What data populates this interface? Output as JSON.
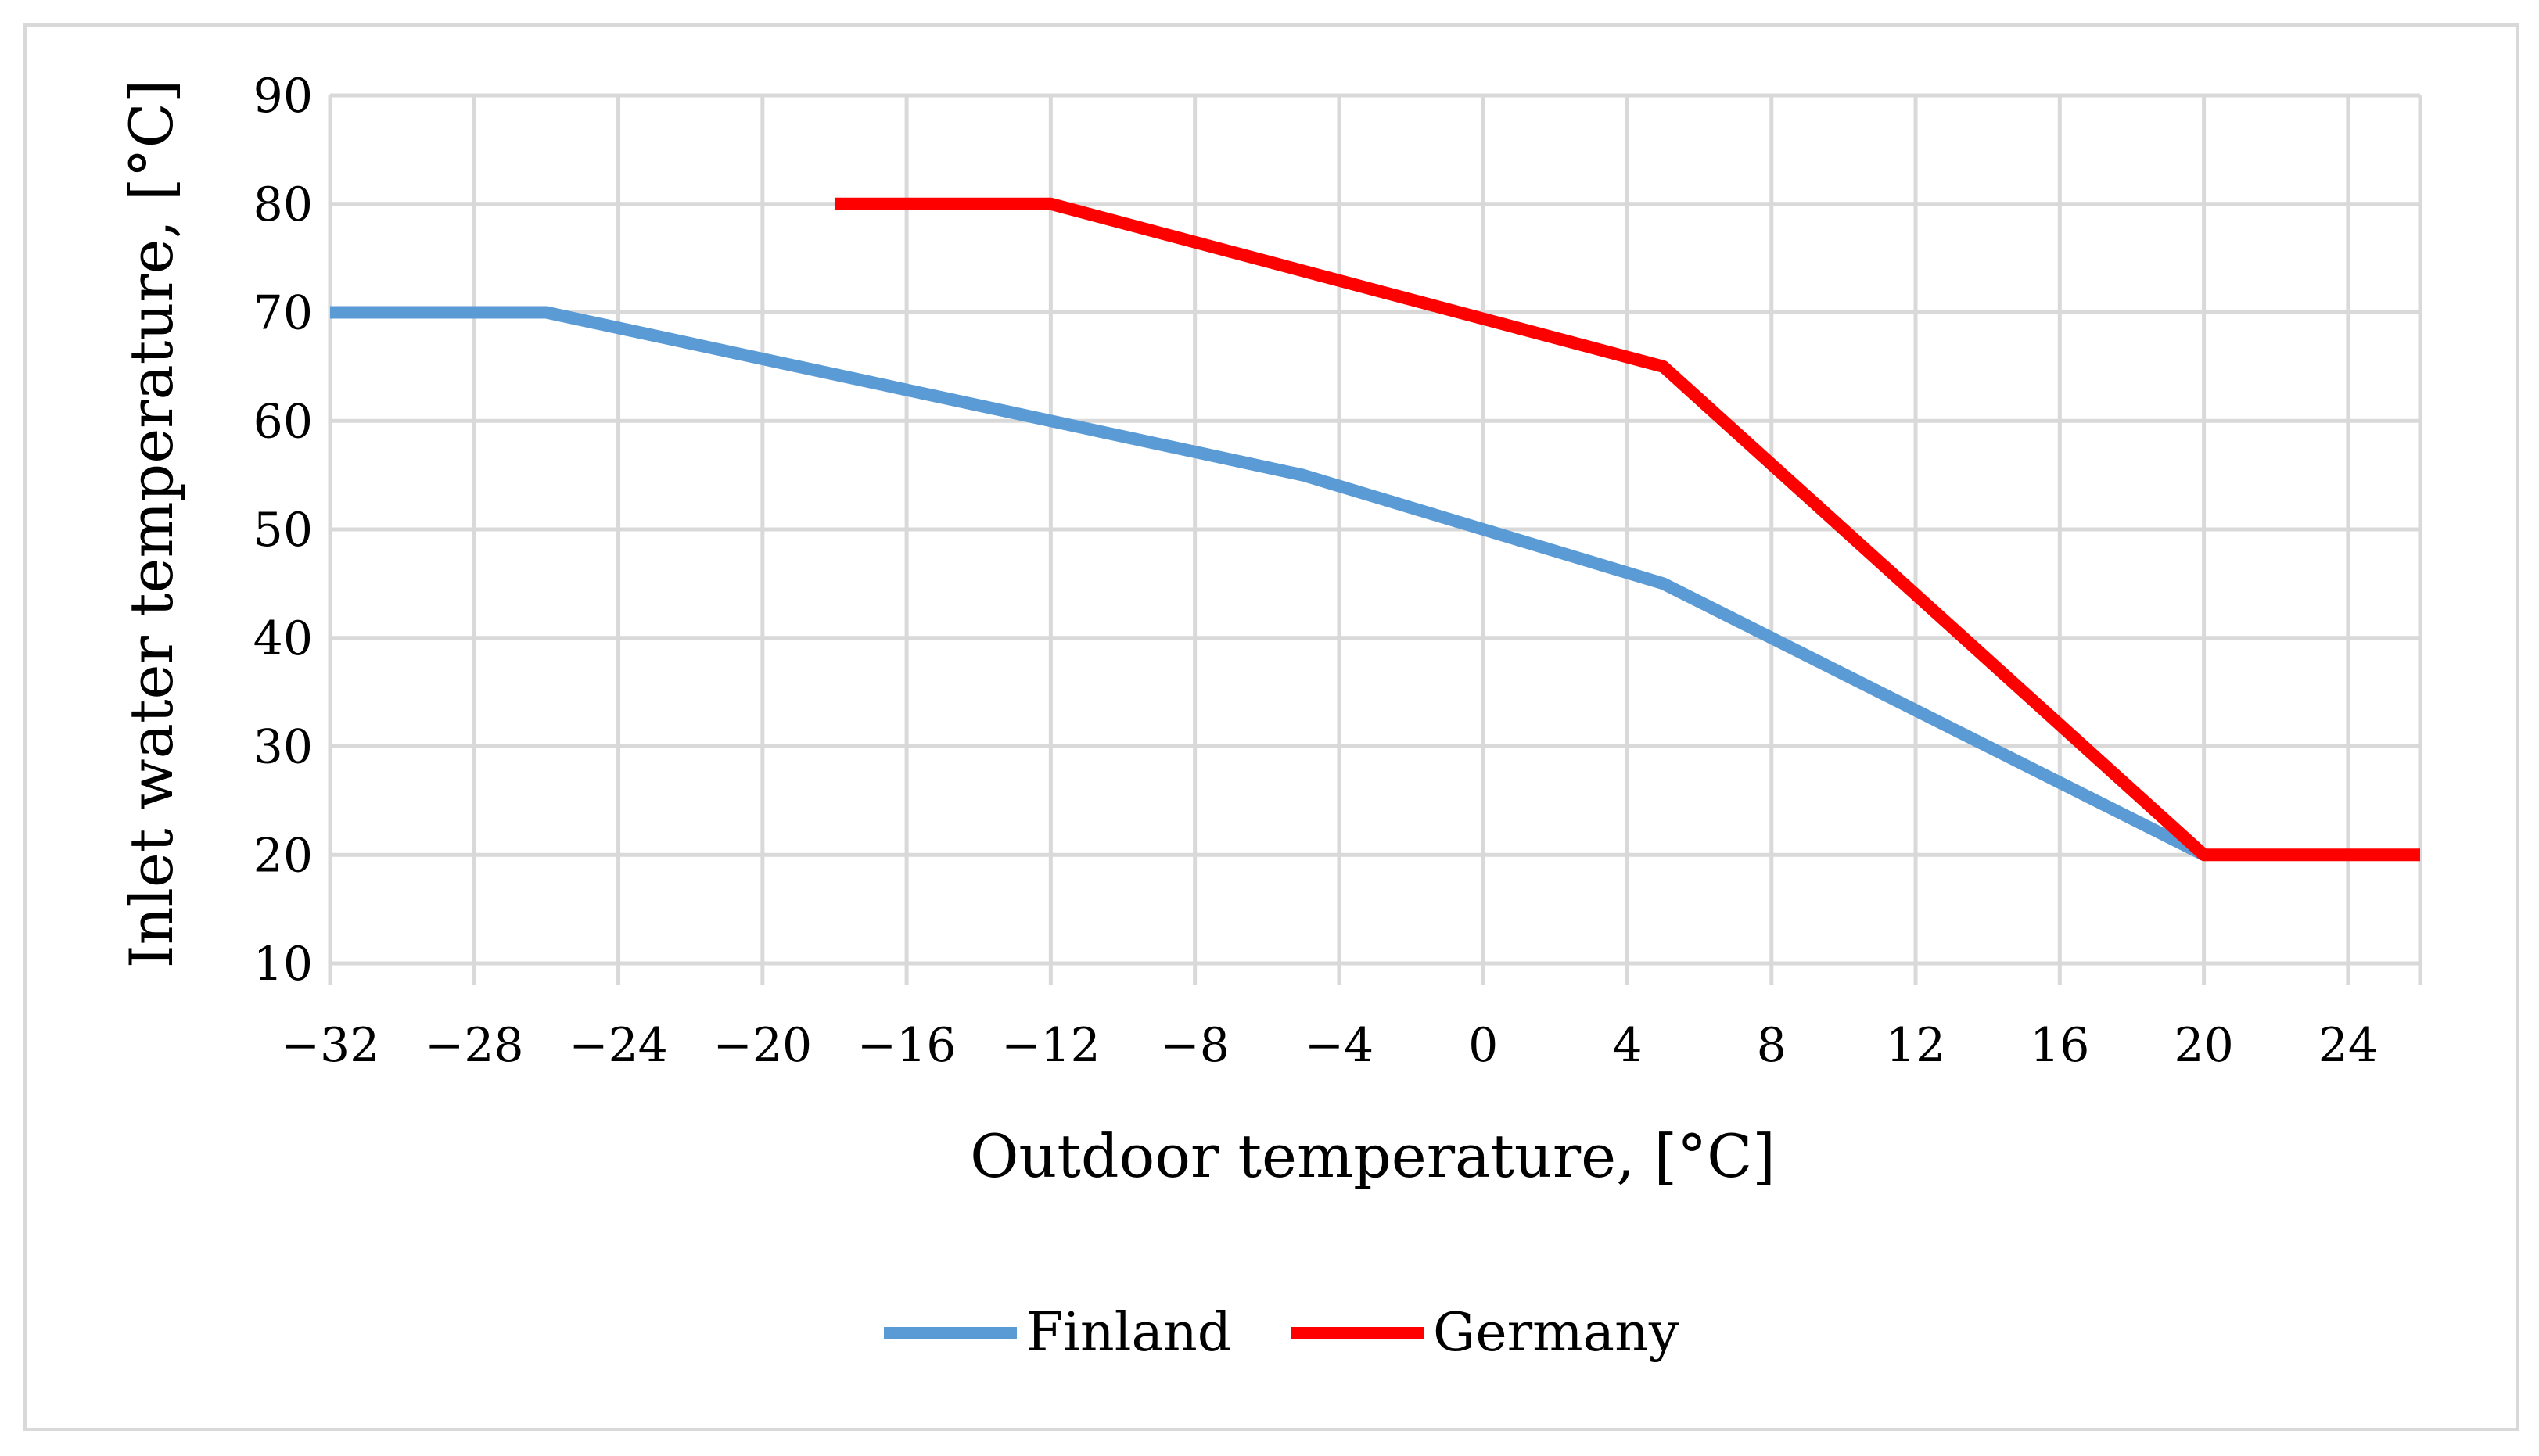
{
  "chart_data": {
    "type": "line",
    "title": "",
    "xlabel": "Outdoor temperature, [°C]",
    "ylabel": "Inlet water temperature, [°C]",
    "xlim": [
      -32,
      26
    ],
    "ylim": [
      10,
      90
    ],
    "xticks": [
      -32,
      -28,
      -24,
      -20,
      -16,
      -12,
      -8,
      -4,
      0,
      4,
      8,
      12,
      16,
      20,
      24
    ],
    "xtick_labels": [
      "−32",
      "−28",
      "−24",
      "−20",
      "−16",
      "−12",
      "−8",
      "−4",
      "0",
      "4",
      "8",
      "12",
      "16",
      "20",
      "24"
    ],
    "yticks": [
      10,
      20,
      30,
      40,
      50,
      60,
      70,
      80,
      90
    ],
    "ytick_labels": [
      "10",
      "20",
      "30",
      "40",
      "50",
      "60",
      "70",
      "80",
      "90"
    ],
    "grid": true,
    "legend_position": "bottom-center",
    "series": [
      {
        "name": "Finland",
        "color": "#5B9BD5",
        "x": [
          -32,
          -26,
          -5,
          5,
          20
        ],
        "y": [
          70,
          70,
          55,
          45,
          20
        ]
      },
      {
        "name": "Germany",
        "color": "#FF0000",
        "x": [
          -18,
          -12,
          5,
          20,
          26
        ],
        "y": [
          80,
          80,
          65,
          20,
          20
        ]
      }
    ]
  }
}
